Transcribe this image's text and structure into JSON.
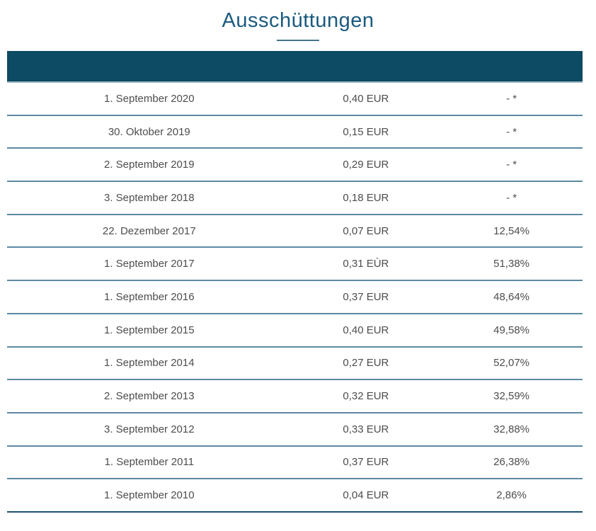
{
  "page": {
    "title": "Ausschüttungen"
  },
  "colors": {
    "title_text": "#1b5a7e",
    "header_bar": "#0d4a63",
    "row_separator": "#5d89a2",
    "bottom_rule": "#1d5273",
    "row_text": "#4d4d4d"
  },
  "table": {
    "rows": [
      {
        "date": "1. September 2020",
        "amount": "0,40 EUR",
        "yield": "- *"
      },
      {
        "date": "30. Oktober 2019",
        "amount": "0,15 EUR",
        "yield": "- *"
      },
      {
        "date": "2. September 2019",
        "amount": "0,29 EUR",
        "yield": "- *"
      },
      {
        "date": "3. September 2018",
        "amount": "0,18 EUR",
        "yield": "- *"
      },
      {
        "date": "22. Dezember 2017",
        "amount": "0,07 EUR",
        "yield": "12,54%"
      },
      {
        "date": "1. September 2017",
        "amount": "0,31 EÙR",
        "yield": "51,38%"
      },
      {
        "date": "1. September 2016",
        "amount": "0,37 EUR",
        "yield": "48,64%"
      },
      {
        "date": "1. September 2015",
        "amount": "0,40 EUR",
        "yield": "49,58%"
      },
      {
        "date": "1. September 2014",
        "amount": "0,27 EUR",
        "yield": "52,07%"
      },
      {
        "date": "2. September 2013",
        "amount": "0,32 EUR",
        "yield": "32,59%"
      },
      {
        "date": "3. September 2012",
        "amount": "0,33 EUR",
        "yield": "32,88%"
      },
      {
        "date": "1. September 2011",
        "amount": "0,37 EUR",
        "yield": "26,38%"
      },
      {
        "date": "1. September 2010",
        "amount": "0,04 EUR",
        "yield": "2,86%"
      }
    ]
  }
}
